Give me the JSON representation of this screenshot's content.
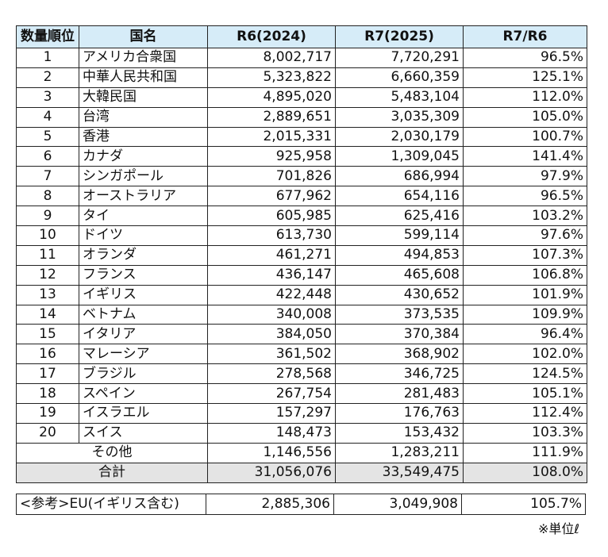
{
  "headers": {
    "rank": "数量順位",
    "country": "国名",
    "r6": "R6(2024)",
    "r7": "R7(2025)",
    "ratio": "R7/R6"
  },
  "rows": [
    {
      "rank": "1",
      "country": "アメリカ合衆国",
      "r6": "8,002,717",
      "r7": "7,720,291",
      "ratio": "96.5%"
    },
    {
      "rank": "2",
      "country": "中華人民共和国",
      "r6": "5,323,822",
      "r7": "6,660,359",
      "ratio": "125.1%"
    },
    {
      "rank": "3",
      "country": "大韓民国",
      "r6": "4,895,020",
      "r7": "5,483,104",
      "ratio": "112.0%"
    },
    {
      "rank": "4",
      "country": "台湾",
      "r6": "2,889,651",
      "r7": "3,035,309",
      "ratio": "105.0%"
    },
    {
      "rank": "5",
      "country": "香港",
      "r6": "2,015,331",
      "r7": "2,030,179",
      "ratio": "100.7%"
    },
    {
      "rank": "6",
      "country": "カナダ",
      "r6": "925,958",
      "r7": "1,309,045",
      "ratio": "141.4%"
    },
    {
      "rank": "7",
      "country": "シンガポール",
      "r6": "701,826",
      "r7": "686,994",
      "ratio": "97.9%"
    },
    {
      "rank": "8",
      "country": "オーストラリア",
      "r6": "677,962",
      "r7": "654,116",
      "ratio": "96.5%"
    },
    {
      "rank": "9",
      "country": "タイ",
      "r6": "605,985",
      "r7": "625,416",
      "ratio": "103.2%"
    },
    {
      "rank": "10",
      "country": "ドイツ",
      "r6": "613,730",
      "r7": "599,114",
      "ratio": "97.6%"
    },
    {
      "rank": "11",
      "country": "オランダ",
      "r6": "461,271",
      "r7": "494,853",
      "ratio": "107.3%"
    },
    {
      "rank": "12",
      "country": "フランス",
      "r6": "436,147",
      "r7": "465,608",
      "ratio": "106.8%"
    },
    {
      "rank": "13",
      "country": "イギリス",
      "r6": "422,448",
      "r7": "430,652",
      "ratio": "101.9%"
    },
    {
      "rank": "14",
      "country": "ベトナム",
      "r6": "340,008",
      "r7": "373,535",
      "ratio": "109.9%"
    },
    {
      "rank": "15",
      "country": "イタリア",
      "r6": "384,050",
      "r7": "370,384",
      "ratio": "96.4%"
    },
    {
      "rank": "16",
      "country": "マレーシア",
      "r6": "361,502",
      "r7": "368,902",
      "ratio": "102.0%"
    },
    {
      "rank": "17",
      "country": "ブラジル",
      "r6": "278,568",
      "r7": "346,725",
      "ratio": "124.5%"
    },
    {
      "rank": "18",
      "country": "スペイン",
      "r6": "267,754",
      "r7": "281,483",
      "ratio": "105.1%"
    },
    {
      "rank": "19",
      "country": "イスラエル",
      "r6": "157,297",
      "r7": "176,763",
      "ratio": "112.4%"
    },
    {
      "rank": "20",
      "country": "スイス",
      "r6": "148,473",
      "r7": "153,432",
      "ratio": "103.3%"
    }
  ],
  "other": {
    "label": "その他",
    "r6": "1,146,556",
    "r7": "1,283,211",
    "ratio": "111.9%"
  },
  "total": {
    "label": "合計",
    "r6": "31,056,076",
    "r7": "33,549,475",
    "ratio": "108.0%"
  },
  "reference": {
    "label": "<参考>EU(イギリス含む)",
    "r6": "2,885,306",
    "r7": "3,049,908",
    "ratio": "105.7%"
  },
  "unit_note": "※単位ℓ",
  "colors": {
    "header_bg": "#d6ecf8",
    "total_bg": "#e4e4e4"
  }
}
